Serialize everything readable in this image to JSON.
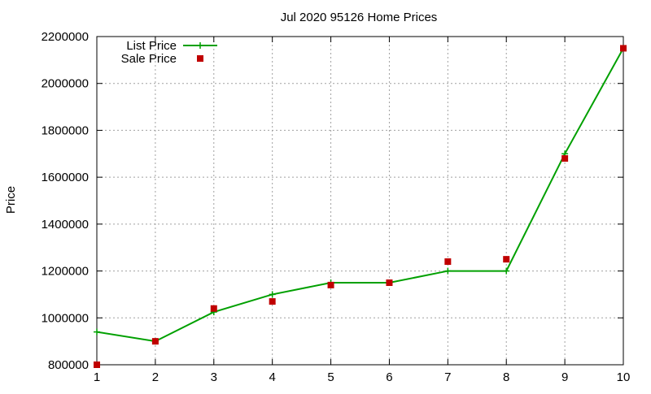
{
  "chart_data": {
    "type": "line",
    "title": "Jul 2020 95126 Home Prices",
    "xlabel": "",
    "ylabel": "Price",
    "x": [
      1,
      2,
      3,
      4,
      5,
      6,
      7,
      8,
      9,
      10
    ],
    "xlim": [
      1,
      10
    ],
    "ylim": [
      800000,
      2200000
    ],
    "xticks": [
      1,
      2,
      3,
      4,
      5,
      6,
      7,
      8,
      9,
      10
    ],
    "yticks": [
      800000,
      1000000,
      1200000,
      1400000,
      1600000,
      1800000,
      2000000,
      2200000
    ],
    "grid": true,
    "legend_position": "top-left",
    "series": [
      {
        "name": "List Price",
        "style": "line-with-plus-markers",
        "color": "#00a000",
        "values": [
          940000,
          900000,
          1025000,
          1100000,
          1150000,
          1150000,
          1200000,
          1200000,
          1700000,
          2150000
        ]
      },
      {
        "name": "Sale Price",
        "style": "square-markers",
        "color": "#c00000",
        "values": [
          800000,
          900000,
          1040000,
          1070000,
          1140000,
          1150000,
          1240000,
          1250000,
          1680000,
          2150000
        ]
      }
    ]
  }
}
